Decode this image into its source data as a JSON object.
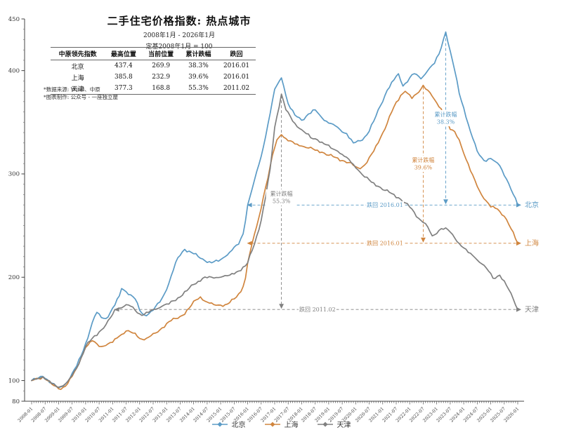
{
  "meta": {
    "title": "二手住宅价格指数: 热点城市",
    "subtitle1": "2008年1月 - 2026年1月",
    "subtitle2": "定基2008年1月 = 100"
  },
  "table": {
    "headers": [
      "中原领先指数",
      "最高位置",
      "当前位置",
      "累计跌幅",
      "跌回"
    ],
    "rows": [
      {
        "city": "北京",
        "peak": "437.4",
        "current": "269.9",
        "drawdown": "38.3%",
        "back_to": "2016.01"
      },
      {
        "city": "上海",
        "peak": "385.8",
        "current": "232.9",
        "drawdown": "39.6%",
        "back_to": "2016.01"
      },
      {
        "city": "天津",
        "peak": "377.3",
        "current": "168.8",
        "drawdown": "55.3%",
        "back_to": "2011.02"
      }
    ]
  },
  "footnotes": [
    "*数据来源: Wind、中原",
    "*图表制作: 公众号 - 一座独立屋"
  ],
  "legend": {
    "items": [
      {
        "label": "北京",
        "color": "#5b9bc6"
      },
      {
        "label": "上海",
        "color": "#d0853e"
      },
      {
        "label": "天津",
        "color": "#808080"
      }
    ]
  },
  "chart_data": {
    "type": "line",
    "title": "二手住宅价格指数: 热点城市",
    "x_start": "2008-01",
    "x_end": "2026-01",
    "ylim": [
      80,
      450
    ],
    "y_ticks": [
      80,
      100,
      200,
      300,
      400,
      450
    ],
    "x_ticks": [
      "2008-01",
      "2008-07",
      "2009-01",
      "2009-07",
      "2010-01",
      "2010-07",
      "2011-01",
      "2011-07",
      "2012-01",
      "2012-07",
      "2013-01",
      "2013-07",
      "2014-01",
      "2014-07",
      "2015-01",
      "2015-07",
      "2016-01",
      "2016-07",
      "2017-01",
      "2017-07",
      "2018-01",
      "2018-07",
      "2019-01",
      "2019-07",
      "2020-01",
      "2020-07",
      "2021-01",
      "2021-07",
      "2022-01",
      "2022-07",
      "2023-01",
      "2023-07",
      "2024-01",
      "2024-07",
      "2025-01",
      "2025-07",
      "2026-01"
    ],
    "series": [
      {
        "name": "北京",
        "color": "#5b9bc6",
        "points": [
          [
            0,
            100
          ],
          [
            3,
            102.5
          ],
          [
            5,
            104
          ],
          [
            7,
            101
          ],
          [
            9,
            97.5
          ],
          [
            12,
            93
          ],
          [
            14,
            94.5
          ],
          [
            16,
            99
          ],
          [
            18,
            107
          ],
          [
            20,
            114
          ],
          [
            22,
            124
          ],
          [
            24,
            136
          ],
          [
            26,
            149
          ],
          [
            28,
            162
          ],
          [
            29,
            166
          ],
          [
            31,
            161
          ],
          [
            33,
            160
          ],
          [
            35,
            166
          ],
          [
            37,
            173
          ],
          [
            39,
            182
          ],
          [
            40,
            189
          ],
          [
            42,
            186
          ],
          [
            44,
            183
          ],
          [
            46,
            179
          ],
          [
            48,
            168
          ],
          [
            50,
            163.5
          ],
          [
            52,
            164.5
          ],
          [
            54,
            168
          ],
          [
            57,
            176
          ],
          [
            60,
            188
          ],
          [
            63,
            207
          ],
          [
            65,
            219
          ],
          [
            68,
            227
          ],
          [
            71,
            224
          ],
          [
            74,
            220
          ],
          [
            77,
            216
          ],
          [
            80,
            214
          ],
          [
            83,
            215.5
          ],
          [
            86,
            220
          ],
          [
            89,
            226
          ],
          [
            92,
            232
          ],
          [
            94,
            242
          ],
          [
            96,
            270
          ],
          [
            99,
            294
          ],
          [
            102,
            317
          ],
          [
            105,
            348
          ],
          [
            108,
            382
          ],
          [
            111,
            393
          ],
          [
            112,
            385
          ],
          [
            114,
            368
          ],
          [
            117,
            357
          ],
          [
            120,
            352
          ],
          [
            123,
            358
          ],
          [
            126,
            362
          ],
          [
            128,
            357
          ],
          [
            131,
            351
          ],
          [
            134,
            348
          ],
          [
            137,
            343
          ],
          [
            140,
            339
          ],
          [
            143,
            330
          ],
          [
            146,
            332
          ],
          [
            149,
            338
          ],
          [
            152,
            351
          ],
          [
            155,
            366
          ],
          [
            158,
            381
          ],
          [
            161,
            391
          ],
          [
            163,
            397
          ],
          [
            165,
            385
          ],
          [
            168,
            393
          ],
          [
            170,
            397
          ],
          [
            173,
            392
          ],
          [
            176,
            400
          ],
          [
            179,
            407
          ],
          [
            181,
            416
          ],
          [
            184,
            437.4
          ],
          [
            186,
            419
          ],
          [
            188,
            400
          ],
          [
            190,
            378
          ],
          [
            192,
            364
          ],
          [
            195,
            341
          ],
          [
            198,
            322
          ],
          [
            201,
            313
          ],
          [
            204,
            315
          ],
          [
            206,
            312
          ],
          [
            208,
            308
          ],
          [
            211,
            295
          ],
          [
            213,
            285
          ],
          [
            216,
            269.9
          ]
        ]
      },
      {
        "name": "上海",
        "color": "#d0853e",
        "points": [
          [
            0,
            100
          ],
          [
            3,
            102
          ],
          [
            5,
            103.5
          ],
          [
            7,
            100
          ],
          [
            9,
            96.5
          ],
          [
            12,
            92
          ],
          [
            14,
            93.5
          ],
          [
            16,
            97
          ],
          [
            18,
            104
          ],
          [
            20,
            112
          ],
          [
            22,
            122
          ],
          [
            24,
            132
          ],
          [
            27,
            138.5
          ],
          [
            30,
            133
          ],
          [
            33,
            134
          ],
          [
            36,
            137
          ],
          [
            39,
            143
          ],
          [
            42,
            148
          ],
          [
            45,
            146
          ],
          [
            49,
            140
          ],
          [
            52,
            142
          ],
          [
            55,
            146
          ],
          [
            58,
            151
          ],
          [
            61,
            157
          ],
          [
            64,
            160
          ],
          [
            67,
            163
          ],
          [
            70,
            170
          ],
          [
            73,
            178
          ],
          [
            75,
            181
          ],
          [
            78,
            176
          ],
          [
            81,
            173.5
          ],
          [
            84,
            173
          ],
          [
            87,
            174
          ],
          [
            90,
            179
          ],
          [
            93,
            186
          ],
          [
            95,
            199
          ],
          [
            96,
            214
          ],
          [
            98,
            233
          ],
          [
            101,
            258
          ],
          [
            103,
            278
          ],
          [
            105,
            296
          ],
          [
            107,
            318
          ],
          [
            109,
            333
          ],
          [
            111,
            338
          ],
          [
            114,
            332
          ],
          [
            117,
            329
          ],
          [
            120,
            327
          ],
          [
            123,
            325
          ],
          [
            126,
            323
          ],
          [
            129,
            321
          ],
          [
            132,
            318
          ],
          [
            135,
            316
          ],
          [
            138,
            313
          ],
          [
            141,
            311
          ],
          [
            144,
            307
          ],
          [
            146,
            305
          ],
          [
            149,
            311
          ],
          [
            152,
            322
          ],
          [
            155,
            335
          ],
          [
            158,
            349
          ],
          [
            161,
            365
          ],
          [
            164,
            376
          ],
          [
            166,
            380
          ],
          [
            169,
            373
          ],
          [
            172,
            379
          ],
          [
            174,
            385.8
          ],
          [
            176,
            381
          ],
          [
            179,
            372
          ],
          [
            182,
            363
          ],
          [
            184,
            352
          ],
          [
            186,
            343
          ],
          [
            188,
            341
          ],
          [
            190,
            333
          ],
          [
            192,
            320
          ],
          [
            195,
            303
          ],
          [
            198,
            288
          ],
          [
            201,
            276
          ],
          [
            204,
            268
          ],
          [
            207,
            266
          ],
          [
            210,
            259
          ],
          [
            213,
            247
          ],
          [
            216,
            232.9
          ]
        ]
      },
      {
        "name": "天津",
        "color": "#808080",
        "points": [
          [
            0,
            100
          ],
          [
            3,
            102
          ],
          [
            5,
            103.5
          ],
          [
            7,
            100.5
          ],
          [
            9,
            97
          ],
          [
            12,
            93.5
          ],
          [
            14,
            95
          ],
          [
            16,
            99
          ],
          [
            18,
            105
          ],
          [
            20,
            112
          ],
          [
            22,
            122
          ],
          [
            24,
            133
          ],
          [
            27,
            141
          ],
          [
            30,
            147
          ],
          [
            33,
            154
          ],
          [
            36,
            164
          ],
          [
            37,
            168.8
          ],
          [
            39,
            170
          ],
          [
            42,
            173.5
          ],
          [
            44,
            172
          ],
          [
            46,
            168
          ],
          [
            49,
            163
          ],
          [
            52,
            166
          ],
          [
            55,
            169
          ],
          [
            58,
            172
          ],
          [
            61,
            174
          ],
          [
            65,
            180
          ],
          [
            69,
            187
          ],
          [
            72,
            193
          ],
          [
            76,
            199
          ],
          [
            80,
            200
          ],
          [
            84,
            200
          ],
          [
            88,
            202
          ],
          [
            92,
            206
          ],
          [
            95,
            211
          ],
          [
            96,
            214
          ],
          [
            99,
            232
          ],
          [
            102,
            255
          ],
          [
            104,
            278
          ],
          [
            106,
            305
          ],
          [
            108,
            345
          ],
          [
            111,
            377.3
          ],
          [
            113,
            362
          ],
          [
            116,
            351
          ],
          [
            119,
            344
          ],
          [
            121,
            341
          ],
          [
            124,
            335
          ],
          [
            127,
            333
          ],
          [
            130,
            329
          ],
          [
            133,
            325
          ],
          [
            136,
            322
          ],
          [
            139,
            317
          ],
          [
            142,
            311
          ],
          [
            145,
            304
          ],
          [
            148,
            297
          ],
          [
            151,
            292
          ],
          [
            154,
            288
          ],
          [
            157,
            284
          ],
          [
            160,
            281
          ],
          [
            163,
            277
          ],
          [
            166,
            272
          ],
          [
            169,
            266
          ],
          [
            172,
            257
          ],
          [
            175,
            252
          ],
          [
            178,
            240
          ],
          [
            182,
            247
          ],
          [
            185,
            246
          ],
          [
            188,
            238
          ],
          [
            191,
            230
          ],
          [
            194,
            224
          ],
          [
            197,
            219
          ],
          [
            200,
            213
          ],
          [
            203,
            206
          ],
          [
            205,
            199
          ],
          [
            208,
            202
          ],
          [
            211,
            192
          ],
          [
            214,
            179
          ],
          [
            216,
            168.8
          ]
        ]
      }
    ],
    "annotations": [
      {
        "name": "beijing",
        "color": "#5b9bc6",
        "peak_month": 184,
        "peak_value": 437.4,
        "current_value": 269.9,
        "hline_start_month": 96,
        "hline_label": "跌回 2016.01",
        "hline_label_month": 157,
        "drawdown_lines": [
          "累计跌幅",
          "38.3%"
        ],
        "drawdown_center_y": 168,
        "end_label": "北京"
      },
      {
        "name": "shanghai",
        "color": "#d0853e",
        "peak_month": 174,
        "peak_value": 385.8,
        "current_value": 232.9,
        "hline_start_month": 96,
        "hline_label": "跌回 2016.01",
        "hline_label_month": 157,
        "drawdown_lines": [
          "累计跌幅",
          "39.6%"
        ],
        "drawdown_center_y": 233,
        "end_label": "上海"
      },
      {
        "name": "tianjin",
        "color": "#808080",
        "peak_month": 111,
        "peak_value": 377.3,
        "current_value": 168.8,
        "hline_start_month": 37,
        "hline_label": "跌回 2011.02",
        "hline_label_month": 127,
        "drawdown_lines": [
          "累计跌幅",
          "55.3%"
        ],
        "drawdown_center_y": 281,
        "end_label": "天津"
      }
    ]
  }
}
